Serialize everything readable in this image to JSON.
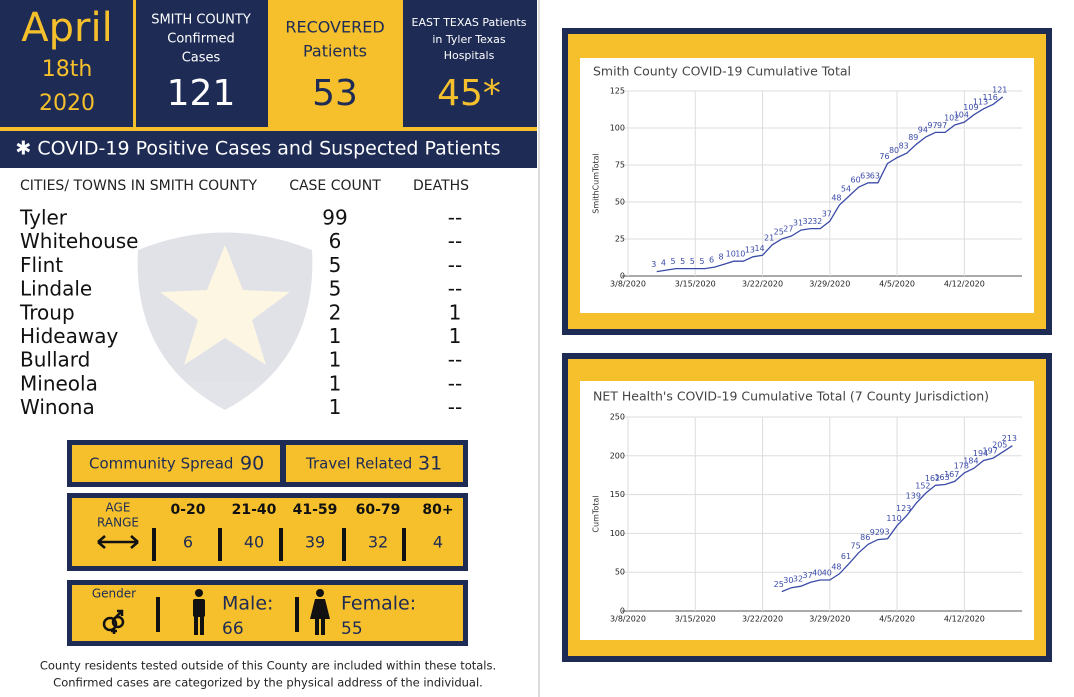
{
  "header": {
    "date": [
      "April",
      "18th",
      "2020"
    ],
    "boxes": [
      {
        "label": [
          "SMITH COUNTY",
          "Confirmed",
          "Cases"
        ],
        "value": "121"
      },
      {
        "label": [
          "RECOVERED",
          "Patients"
        ],
        "value": "53"
      },
      {
        "label": [
          "EAST TEXAS Patients",
          "in Tyler Texas",
          "Hospitals"
        ],
        "value": "45*"
      }
    ],
    "banner": "✱ COVID-19 Positive Cases and Suspected Patients"
  },
  "table": {
    "columns": [
      "CITIES/ TOWNS IN SMITH COUNTY",
      "CASE COUNT",
      "DEATHS"
    ],
    "rows": [
      [
        "Tyler",
        99,
        "--"
      ],
      [
        "Whitehouse",
        6,
        "--"
      ],
      [
        "Flint",
        5,
        "--"
      ],
      [
        "Lindale",
        5,
        "--"
      ],
      [
        "Troup",
        2,
        1
      ],
      [
        "Hideaway",
        1,
        1
      ],
      [
        "Bullard",
        1,
        "--"
      ],
      [
        "Mineola",
        1,
        "--"
      ],
      [
        "Winona",
        1,
        "--"
      ]
    ]
  },
  "spread": [
    {
      "label": "Community Spread",
      "value": 90
    },
    {
      "label": "Travel Related",
      "value": 31
    }
  ],
  "age": {
    "label": [
      "AGE",
      "RANGE"
    ],
    "groups": [
      "0-20",
      "21-40",
      "41-59",
      "60-79",
      "80+"
    ],
    "values": [
      6,
      40,
      39,
      32,
      4
    ]
  },
  "gender": {
    "label": "Gender",
    "male": {
      "label": "Male:",
      "value": 66
    },
    "female": {
      "label": "Female:",
      "value": 55
    }
  },
  "footer": [
    "County residents tested outside of this County are included within these totals.",
    "Confirmed cases are categorized by the physical address of the individual."
  ],
  "chart_data": [
    {
      "type": "line",
      "title": "Smith County COVID-19 Cumulative Total",
      "y_label": "SmithCumTotal",
      "color": "#3b4ba8",
      "x": [
        "3/11/2020",
        "3/12/2020",
        "3/13/2020",
        "3/14/2020",
        "3/15/2020",
        "3/16/2020",
        "3/17/2020",
        "3/18/2020",
        "3/19/2020",
        "3/20/2020",
        "3/21/2020",
        "3/22/2020",
        "3/23/2020",
        "3/24/2020",
        "3/25/2020",
        "3/26/2020",
        "3/27/2020",
        "3/28/2020",
        "3/29/2020",
        "3/30/2020",
        "3/31/2020",
        "4/1/2020",
        "4/2/2020",
        "4/3/2020",
        "4/4/2020",
        "4/5/2020",
        "4/6/2020",
        "4/7/2020",
        "4/8/2020",
        "4/9/2020",
        "4/10/2020",
        "4/11/2020",
        "4/12/2020",
        "4/13/2020",
        "4/14/2020",
        "4/15/2020",
        "4/16/2020"
      ],
      "values": [
        3,
        4,
        5,
        5,
        5,
        5,
        6,
        8,
        10,
        10,
        13,
        14,
        21,
        25,
        27,
        31,
        32,
        32,
        37,
        48,
        54,
        60,
        63,
        63,
        76,
        80,
        83,
        89,
        94,
        97,
        97,
        102,
        104,
        109,
        113,
        116,
        121
      ],
      "xlim": [
        "3/8/2020",
        "4/18/2020"
      ],
      "xticks": [
        "3/8/2020",
        "3/15/2020",
        "3/22/2020",
        "3/29/2020",
        "4/5/2020",
        "4/12/2020"
      ],
      "ylim": [
        0,
        125
      ],
      "yticks": [
        0,
        25,
        50,
        75,
        100,
        125
      ],
      "grid": true
    },
    {
      "type": "line",
      "title": "NET Health's COVID-19 Cumulative Total (7 County Jurisdiction)",
      "y_label": "CumTotal",
      "color": "#3b4ba8",
      "x": [
        "3/24/2020",
        "3/25/2020",
        "3/26/2020",
        "3/27/2020",
        "3/28/2020",
        "3/29/2020",
        "3/30/2020",
        "3/31/2020",
        "4/1/2020",
        "4/2/2020",
        "4/3/2020",
        "4/4/2020",
        "4/5/2020",
        "4/6/2020",
        "4/7/2020",
        "4/8/2020",
        "4/9/2020",
        "4/10/2020",
        "4/11/2020",
        "4/12/2020",
        "4/13/2020",
        "4/14/2020",
        "4/15/2020",
        "4/16/2020",
        "4/17/2020"
      ],
      "values": [
        25,
        30,
        32,
        37,
        40,
        40,
        48,
        61,
        75,
        86,
        92,
        93,
        110,
        123,
        139,
        152,
        162,
        163,
        167,
        178,
        184,
        194,
        197,
        205,
        213
      ],
      "xlim": [
        "3/8/2020",
        "4/18/2020"
      ],
      "xticks": [
        "3/8/2020",
        "3/15/2020",
        "3/22/2020",
        "3/29/2020",
        "4/5/2020",
        "4/12/2020"
      ],
      "ylim": [
        0,
        250
      ],
      "yticks": [
        0,
        50,
        100,
        150,
        200,
        250
      ],
      "grid": true
    }
  ]
}
